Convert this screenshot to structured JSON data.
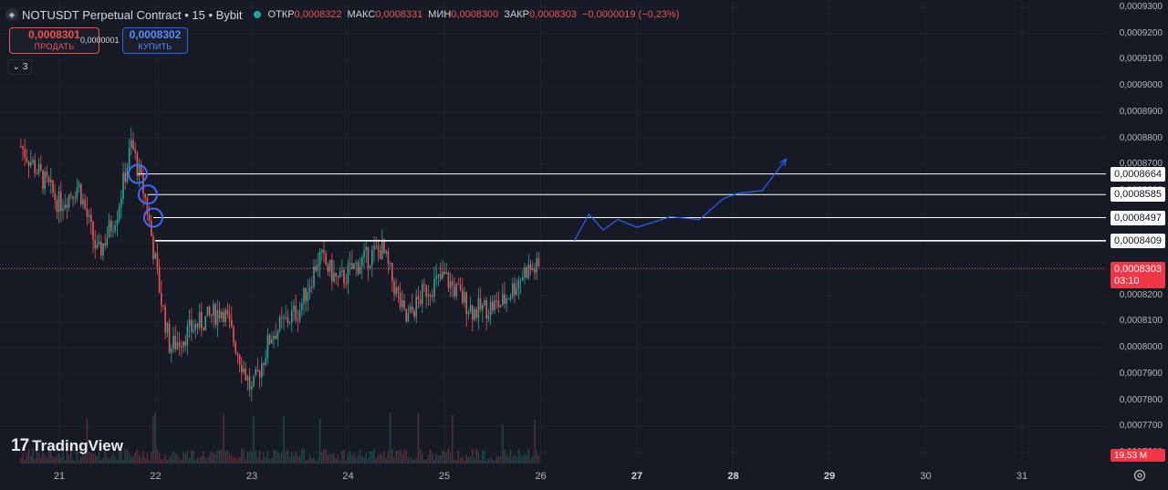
{
  "header": {
    "symbol": "NOTUSDT Perpetual Contract • 15 • Bybit",
    "ohlc": {
      "open_label": "ОТКР",
      "open": "0,0008322",
      "high_label": "МАКС",
      "high": "0,0008331",
      "low_label": "МИН",
      "low": "0,0008300",
      "close_label": "ЗАКР",
      "close": "0,0008303",
      "change": "−0,0000019 (−0,23%)"
    }
  },
  "trade": {
    "sell_price": "0,0008301",
    "sell_label": "ПРОДАТЬ",
    "spread": "0,0000001",
    "buy_price": "0,0008302",
    "buy_label": "КУПИТЬ"
  },
  "indicators_count": "3",
  "watermark": "TradingView",
  "price_axis": {
    "ticks": [
      "0,0009300",
      "0,0009200",
      "0,0009100",
      "0,0009000",
      "0,0008900",
      "0,0008800",
      "0,0008700",
      "0,0008600",
      "0,0008500",
      "0,0008400",
      "0,0008300",
      "0,0008200",
      "0,0008100",
      "0,0008000",
      "0,0007900",
      "0,0007800",
      "0,0007700",
      "0,0007600"
    ],
    "level_tags": [
      "0,0008664",
      "0,0008585",
      "0,0008497",
      "0,0008409"
    ],
    "current_price": "0,0008303",
    "countdown": "03:10",
    "volume": "19,53 M"
  },
  "time_axis": {
    "ticks": [
      "21",
      "22",
      "23",
      "24",
      "25",
      "26",
      "27",
      "28",
      "29",
      "30",
      "31"
    ],
    "future_ticks": [
      "27",
      "28",
      "29"
    ]
  },
  "colors": {
    "background": "#161a25",
    "up": "#26a69a",
    "down": "#ef5350",
    "projection": "#2962ff",
    "level_line": "#ffffff"
  },
  "chart_data": {
    "type": "candlestick",
    "symbol": "NOTUSDT",
    "interval": "15",
    "y_range": [
      0.00076,
      0.00093
    ],
    "x_categories": [
      "21",
      "22",
      "23",
      "24",
      "25",
      "26",
      "27",
      "28",
      "29",
      "30",
      "31"
    ],
    "horizontal_levels": [
      0.0008664,
      0.0008585,
      0.0008497,
      0.0008409
    ],
    "current_price": 0.0008303,
    "price_path": [
      {
        "day": 20.6,
        "price": 0.000877
      },
      {
        "day": 20.8,
        "price": 0.000866
      },
      {
        "day": 21.0,
        "price": 0.000855
      },
      {
        "day": 21.2,
        "price": 0.000862
      },
      {
        "day": 21.4,
        "price": 0.000835
      },
      {
        "day": 21.6,
        "price": 0.000852
      },
      {
        "day": 21.75,
        "price": 0.000878
      },
      {
        "day": 21.9,
        "price": 0.000856
      },
      {
        "day": 22.05,
        "price": 0.00082
      },
      {
        "day": 22.15,
        "price": 0.0008
      },
      {
        "day": 22.4,
        "price": 0.000808
      },
      {
        "day": 22.7,
        "price": 0.000815
      },
      {
        "day": 23.0,
        "price": 0.000783
      },
      {
        "day": 23.2,
        "price": 0.000805
      },
      {
        "day": 23.5,
        "price": 0.000815
      },
      {
        "day": 23.7,
        "price": 0.000835
      },
      {
        "day": 23.9,
        "price": 0.000825
      },
      {
        "day": 24.1,
        "price": 0.000832
      },
      {
        "day": 24.35,
        "price": 0.000838
      },
      {
        "day": 24.6,
        "price": 0.00081
      },
      {
        "day": 24.8,
        "price": 0.000822
      },
      {
        "day": 25.0,
        "price": 0.000827
      },
      {
        "day": 25.3,
        "price": 0.000814
      },
      {
        "day": 25.6,
        "price": 0.000817
      },
      {
        "day": 25.85,
        "price": 0.00083
      },
      {
        "day": 26.0,
        "price": 0.0008303
      }
    ],
    "projection": [
      {
        "day": 26.35,
        "price": 0.000841
      },
      {
        "day": 26.5,
        "price": 0.000851
      },
      {
        "day": 26.65,
        "price": 0.000845
      },
      {
        "day": 26.8,
        "price": 0.000849
      },
      {
        "day": 27.0,
        "price": 0.000846
      },
      {
        "day": 27.35,
        "price": 0.00085
      },
      {
        "day": 27.65,
        "price": 0.000849
      },
      {
        "day": 27.9,
        "price": 0.000857
      },
      {
        "day": 28.05,
        "price": 0.000859
      },
      {
        "day": 28.3,
        "price": 0.00086
      },
      {
        "day": 28.55,
        "price": 0.000872
      }
    ],
    "volume_scale_label": "19,53 M"
  }
}
